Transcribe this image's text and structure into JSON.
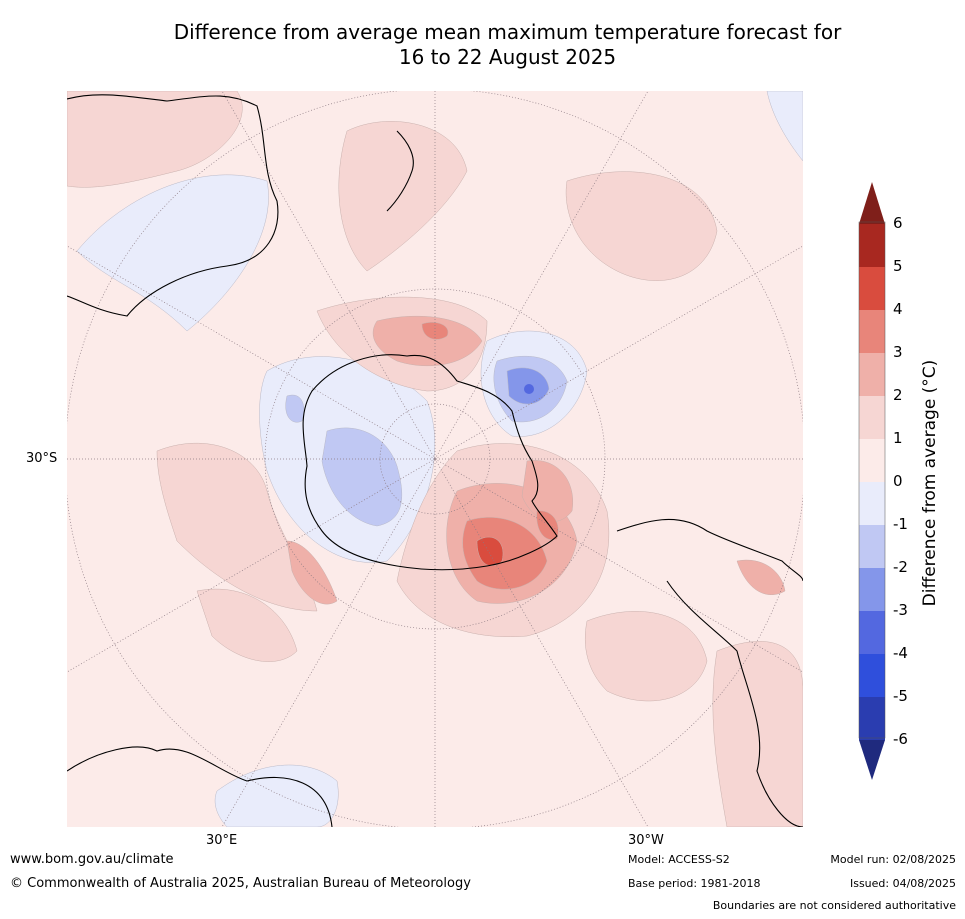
{
  "title": {
    "line1": "Difference from average mean maximum temperature forecast for",
    "line2": "16 to 22 August 2025"
  },
  "axes": {
    "lat_label": "30°S",
    "lon_labels": [
      "30°E",
      "30°W"
    ]
  },
  "colorbar": {
    "label": "Difference from average (°C)",
    "ticks": [
      "6",
      "5",
      "4",
      "3",
      "2",
      "1",
      "0",
      "-1",
      "-2",
      "-3",
      "-4",
      "-5",
      "-6"
    ],
    "colors": [
      "#7f1f1a",
      "#a82820",
      "#d94c3e",
      "#e8857a",
      "#efb0a9",
      "#f6d6d3",
      "#fcebe9",
      "#e9ecfb",
      "#c0c8f3",
      "#8496ea",
      "#5368e0",
      "#2f4fdc",
      "#2a3db0",
      "#1f2a7e"
    ]
  },
  "footer": {
    "website": "www.bom.gov.au/climate",
    "copyright": "© Commonwealth of Australia 2025, Australian Bureau of Meteorology",
    "model": "Model: ACCESS-S2",
    "base_period": "Base period: 1981-2018",
    "model_run": "Model run: 02/08/2025",
    "issued": "Issued: 04/08/2025",
    "disclaimer": "Boundaries are not considered authoritative"
  }
}
